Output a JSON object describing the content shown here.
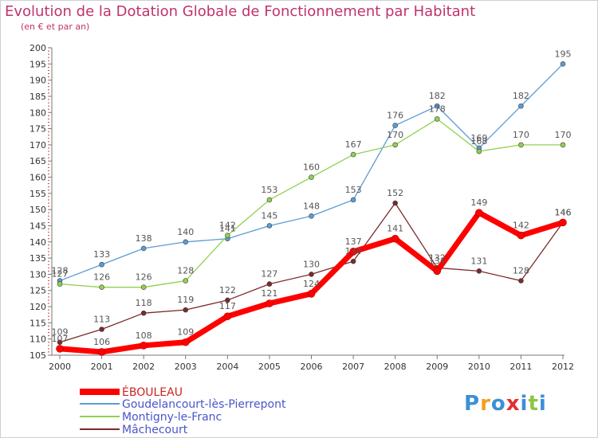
{
  "chart_data": {
    "type": "line",
    "title": "Evolution de la Dotation Globale de Fonctionnement par Habitant",
    "subtitle": "(en € et par an)",
    "xlabel": "",
    "ylabel": "",
    "x": [
      "2000",
      "2001",
      "2002",
      "2003",
      "2004",
      "2005",
      "2006",
      "2007",
      "2008",
      "2009",
      "2010",
      "2011",
      "2012"
    ],
    "ylim": [
      105,
      200
    ],
    "yticks": [
      105,
      110,
      115,
      120,
      125,
      130,
      135,
      140,
      145,
      150,
      155,
      160,
      165,
      170,
      175,
      180,
      185,
      190,
      195,
      200
    ],
    "grid": false,
    "legend_position": "bottom-left",
    "series": [
      {
        "name": "ÉBOULEAU",
        "color": "#ff0000",
        "values": [
          107,
          106,
          108,
          109,
          117,
          121,
          124,
          137,
          141,
          131,
          149,
          142,
          146
        ]
      },
      {
        "name": "Goudelancourt-lès-Pierrepont",
        "color": "#5b9bd5",
        "values": [
          128,
          133,
          138,
          140,
          141,
          145,
          148,
          153,
          176,
          182,
          169,
          182,
          195
        ]
      },
      {
        "name": "Montigny-le-Franc",
        "color": "#90d050",
        "values": [
          127,
          126,
          126,
          128,
          142,
          153,
          160,
          167,
          170,
          178,
          168,
          170,
          170
        ]
      },
      {
        "name": "Mâchecourt",
        "color": "#7b2a2a",
        "values": [
          109,
          113,
          118,
          119,
          122,
          127,
          130,
          134,
          152,
          132,
          131,
          128,
          146
        ]
      }
    ]
  },
  "logo": {
    "text": "Proxiti",
    "letters": [
      "P",
      "r",
      "o",
      "x",
      "i",
      "t",
      "i"
    ],
    "colors": [
      "#3d8fd6",
      "#f0a020",
      "#3d8fd6",
      "#e03030",
      "#3d8fd6",
      "#8cc63f",
      "#3d8fd6"
    ]
  }
}
